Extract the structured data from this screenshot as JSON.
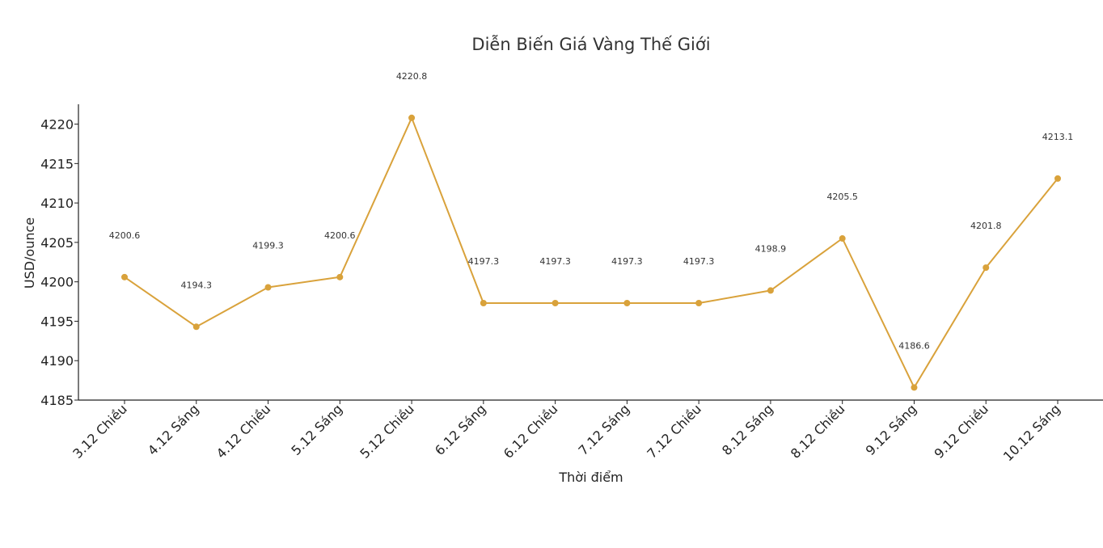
{
  "chart_data": {
    "type": "line",
    "title": "Diễn Biến Giá Vàng Thế Giới",
    "xlabel": "Thời điểm",
    "ylabel": "USD/ounce",
    "ylim": [
      4185,
      4222.5
    ],
    "yticks": [
      4185,
      4190,
      4195,
      4200,
      4205,
      4210,
      4215,
      4220
    ],
    "grid": false,
    "legend": "none",
    "color": "#D9A23B",
    "categories": [
      "3.12 Chiều",
      "4.12 Sáng",
      "4.12 Chiều",
      "5.12 Sáng",
      "5.12 Chiều",
      "6.12 Sáng",
      "6.12 Chiều",
      "7.12 Sáng",
      "7.12 Chiều",
      "8.12 Sáng",
      "8.12 Chiều",
      "9.12 Sáng",
      "9.12 Chiều",
      "10.12 Sáng"
    ],
    "values": [
      4200.6,
      4194.3,
      4199.3,
      4200.6,
      4220.8,
      4197.3,
      4197.3,
      4197.3,
      4197.3,
      4198.9,
      4205.5,
      4186.6,
      4201.8,
      4213.1
    ],
    "data_labels": [
      "4200.6",
      "4194.3",
      "4199.3",
      "4200.6",
      "4220.8",
      "4197.3",
      "4197.3",
      "4197.3",
      "4197.3",
      "4198.9",
      "4205.5",
      "4186.6",
      "4201.8",
      "4213.1"
    ]
  }
}
